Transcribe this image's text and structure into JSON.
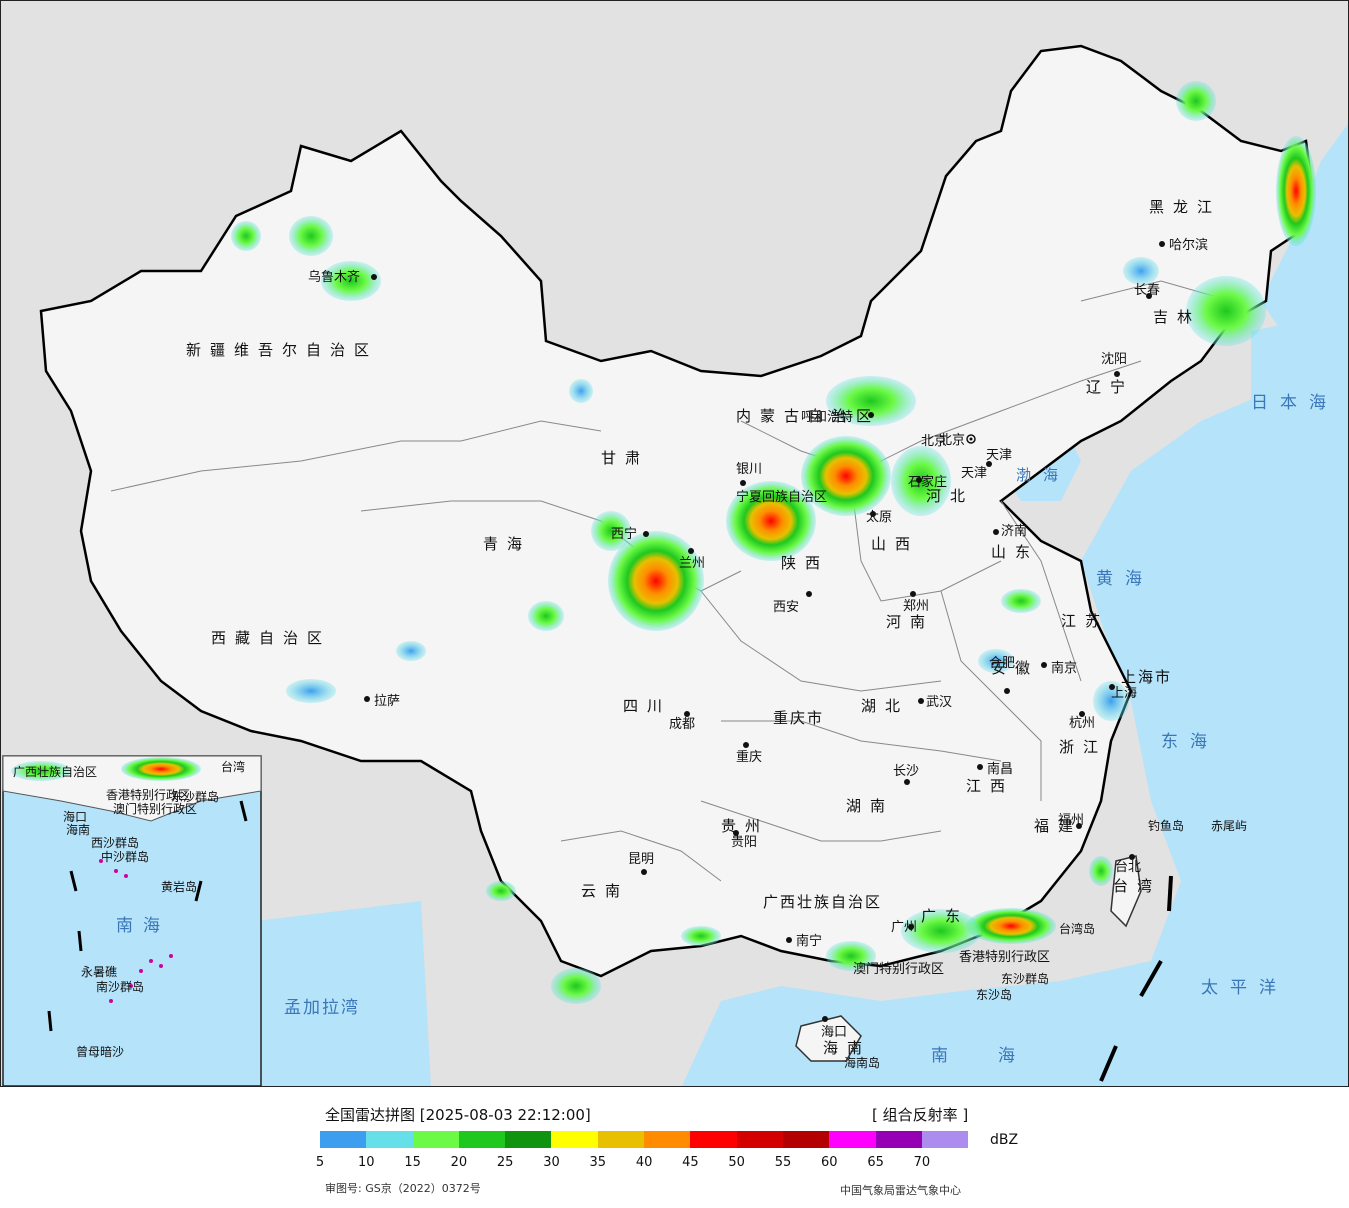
{
  "legend": {
    "title": "全国雷达拼图 [2025-08-03 22:12:00]",
    "product": "[ 组合反射率 ]",
    "unit": "dBZ",
    "colors": [
      "#3d9ef0",
      "#66e0e8",
      "#6dfa46",
      "#1ec81e",
      "#109410",
      "#ffff00",
      "#e8c000",
      "#ff8c00",
      "#ff0000",
      "#d40000",
      "#b40000",
      "#ff00ff",
      "#9600b4",
      "#ad8cf0"
    ],
    "ticks": [
      "5",
      "10",
      "15",
      "20",
      "25",
      "30",
      "35",
      "40",
      "45",
      "50",
      "55",
      "60",
      "65",
      "70"
    ],
    "approval": "审图号: GS京（2022）0372号",
    "source": "中国气象局雷达气象中心"
  },
  "provinces": [
    "黑龙江",
    "吉林",
    "辽宁",
    "内蒙古自治区",
    "河北",
    "北京",
    "天津",
    "山西",
    "山东",
    "河南",
    "江苏",
    "安徽",
    "上海市",
    "浙江",
    "江西",
    "福建",
    "台湾",
    "广东",
    "香港特别行政区",
    "澳门特别行政区",
    "海南",
    "广西壮族自治区",
    "湖南",
    "湖北",
    "重庆市",
    "四川",
    "贵州",
    "云南",
    "西藏自治区",
    "青海",
    "甘肃",
    "宁夏回族自治区",
    "陕西",
    "新疆维吾尔自治区"
  ],
  "cities": [
    "哈尔滨",
    "长春",
    "沈阳",
    "北京",
    "天津",
    "石家庄",
    "太原",
    "呼和浩特",
    "银川",
    "兰州",
    "西宁",
    "济南",
    "郑州",
    "西安",
    "南京",
    "合肥",
    "上海",
    "杭州",
    "武汉",
    "长沙",
    "南昌",
    "福州",
    "台北",
    "广州",
    "南宁",
    "海口",
    "昆明",
    "贵阳",
    "成都",
    "重庆",
    "拉萨",
    "乌鲁木齐"
  ],
  "seas": [
    "日本海",
    "渤海",
    "黄海",
    "东海",
    "太平洋",
    "南海",
    "孟加拉湾"
  ],
  "islands": [
    "钓鱼岛",
    "赤尾屿",
    "台湾岛",
    "东沙群岛",
    "东沙岛",
    "海南岛"
  ],
  "inset": {
    "labels": [
      "南海",
      "广西壮族自治区",
      "香港特别行政区",
      "台湾",
      "海口",
      "海南",
      "西沙群岛",
      "中沙群岛",
      "黄岩岛",
      "永暑礁",
      "南沙群岛",
      "曾母暗沙",
      "东沙群岛",
      "澳门特别行政区"
    ]
  }
}
